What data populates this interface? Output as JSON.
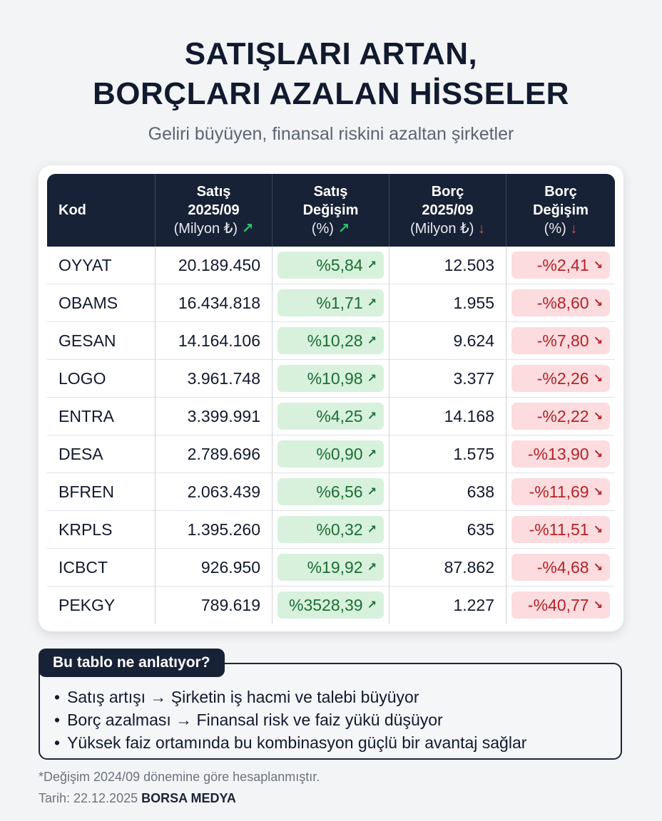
{
  "title": {
    "line1": "SATIŞLARI ARTAN,",
    "line2": "BORÇLARI AZALAN HİSSELER"
  },
  "subtitle": "Geliri büyüyen, finansal riskini azaltan şirketler",
  "table": {
    "headers": [
      {
        "l1": "Kod",
        "l2": "",
        "l3": ""
      },
      {
        "l1": "Satış",
        "l2": "2025/09",
        "l3": "(Milyon ₺)",
        "arrow": "↗"
      },
      {
        "l1": "Satış",
        "l2": "Değişim",
        "l3": "(%)",
        "arrow": "↗"
      },
      {
        "l1": "Borç",
        "l2": "2025/09",
        "l3": "(Milyon ₺)",
        "arrow": "↓"
      },
      {
        "l1": "Borç",
        "l2": "Değişim",
        "l3": "(%)",
        "arrow": "↓"
      }
    ],
    "rows": [
      {
        "kod": "OYYAT",
        "satis": "20.189.450",
        "satis_degisim": "%5,84",
        "borc": "12.503",
        "borc_degisim": "-%2,41"
      },
      {
        "kod": "OBAMS",
        "satis": "16.434.818",
        "satis_degisim": "%1,71",
        "borc": "1.955",
        "borc_degisim": "-%8,60"
      },
      {
        "kod": "GESAN",
        "satis": "14.164.106",
        "satis_degisim": "%10,28",
        "borc": "9.624",
        "borc_degisim": "-%7,80"
      },
      {
        "kod": "LOGO",
        "satis": "3.961.748",
        "satis_degisim": "%10,98",
        "borc": "3.377",
        "borc_degisim": "-%2,26"
      },
      {
        "kod": "ENTRA",
        "satis": "3.399.991",
        "satis_degisim": "%4,25",
        "borc": "14.168",
        "borc_degisim": "-%2,22"
      },
      {
        "kod": "DESA",
        "satis": "2.789.696",
        "satis_degisim": "%0,90",
        "borc": "1.575",
        "borc_degisim": "-%13,90"
      },
      {
        "kod": "BFREN",
        "satis": "2.063.439",
        "satis_degisim": "%6,56",
        "borc": "638",
        "borc_degisim": "-%11,69"
      },
      {
        "kod": "KRPLS",
        "satis": "1.395.260",
        "satis_degisim": "%0,32",
        "borc": "635",
        "borc_degisim": "-%11,51"
      },
      {
        "kod": "ICBCT",
        "satis": "926.950",
        "satis_degisim": "%19,92",
        "borc": "87.862",
        "borc_degisim": "-%4,68"
      },
      {
        "kod": "PEKGY",
        "satis": "789.619",
        "satis_degisim": "%3528,39",
        "borc": "1.227",
        "borc_degisim": "-%40,77"
      }
    ],
    "pill_up_arrow": "↗",
    "pill_down_arrow": "↘"
  },
  "info": {
    "heading": "Bu tablo ne anlatıyor?",
    "items": [
      "Satış artışı → Şirketin iş hacmi ve talebi büyüyor",
      "Borç azalması → Finansal risk ve faiz yükü düşüyor",
      "Yüksek faiz ortamında bu kombinasyon güçlü bir avantaj sağlar"
    ]
  },
  "footnote": "*Değişim 2024/09 dönemine göre hesaplanmıştır.",
  "date_label": "Tarih: 22.12.2025",
  "brand": "BORSA MEDYA",
  "colors": {
    "header_bg": "#182236",
    "green_pill": "#d7f1dc",
    "red_pill": "#fcdcde"
  }
}
